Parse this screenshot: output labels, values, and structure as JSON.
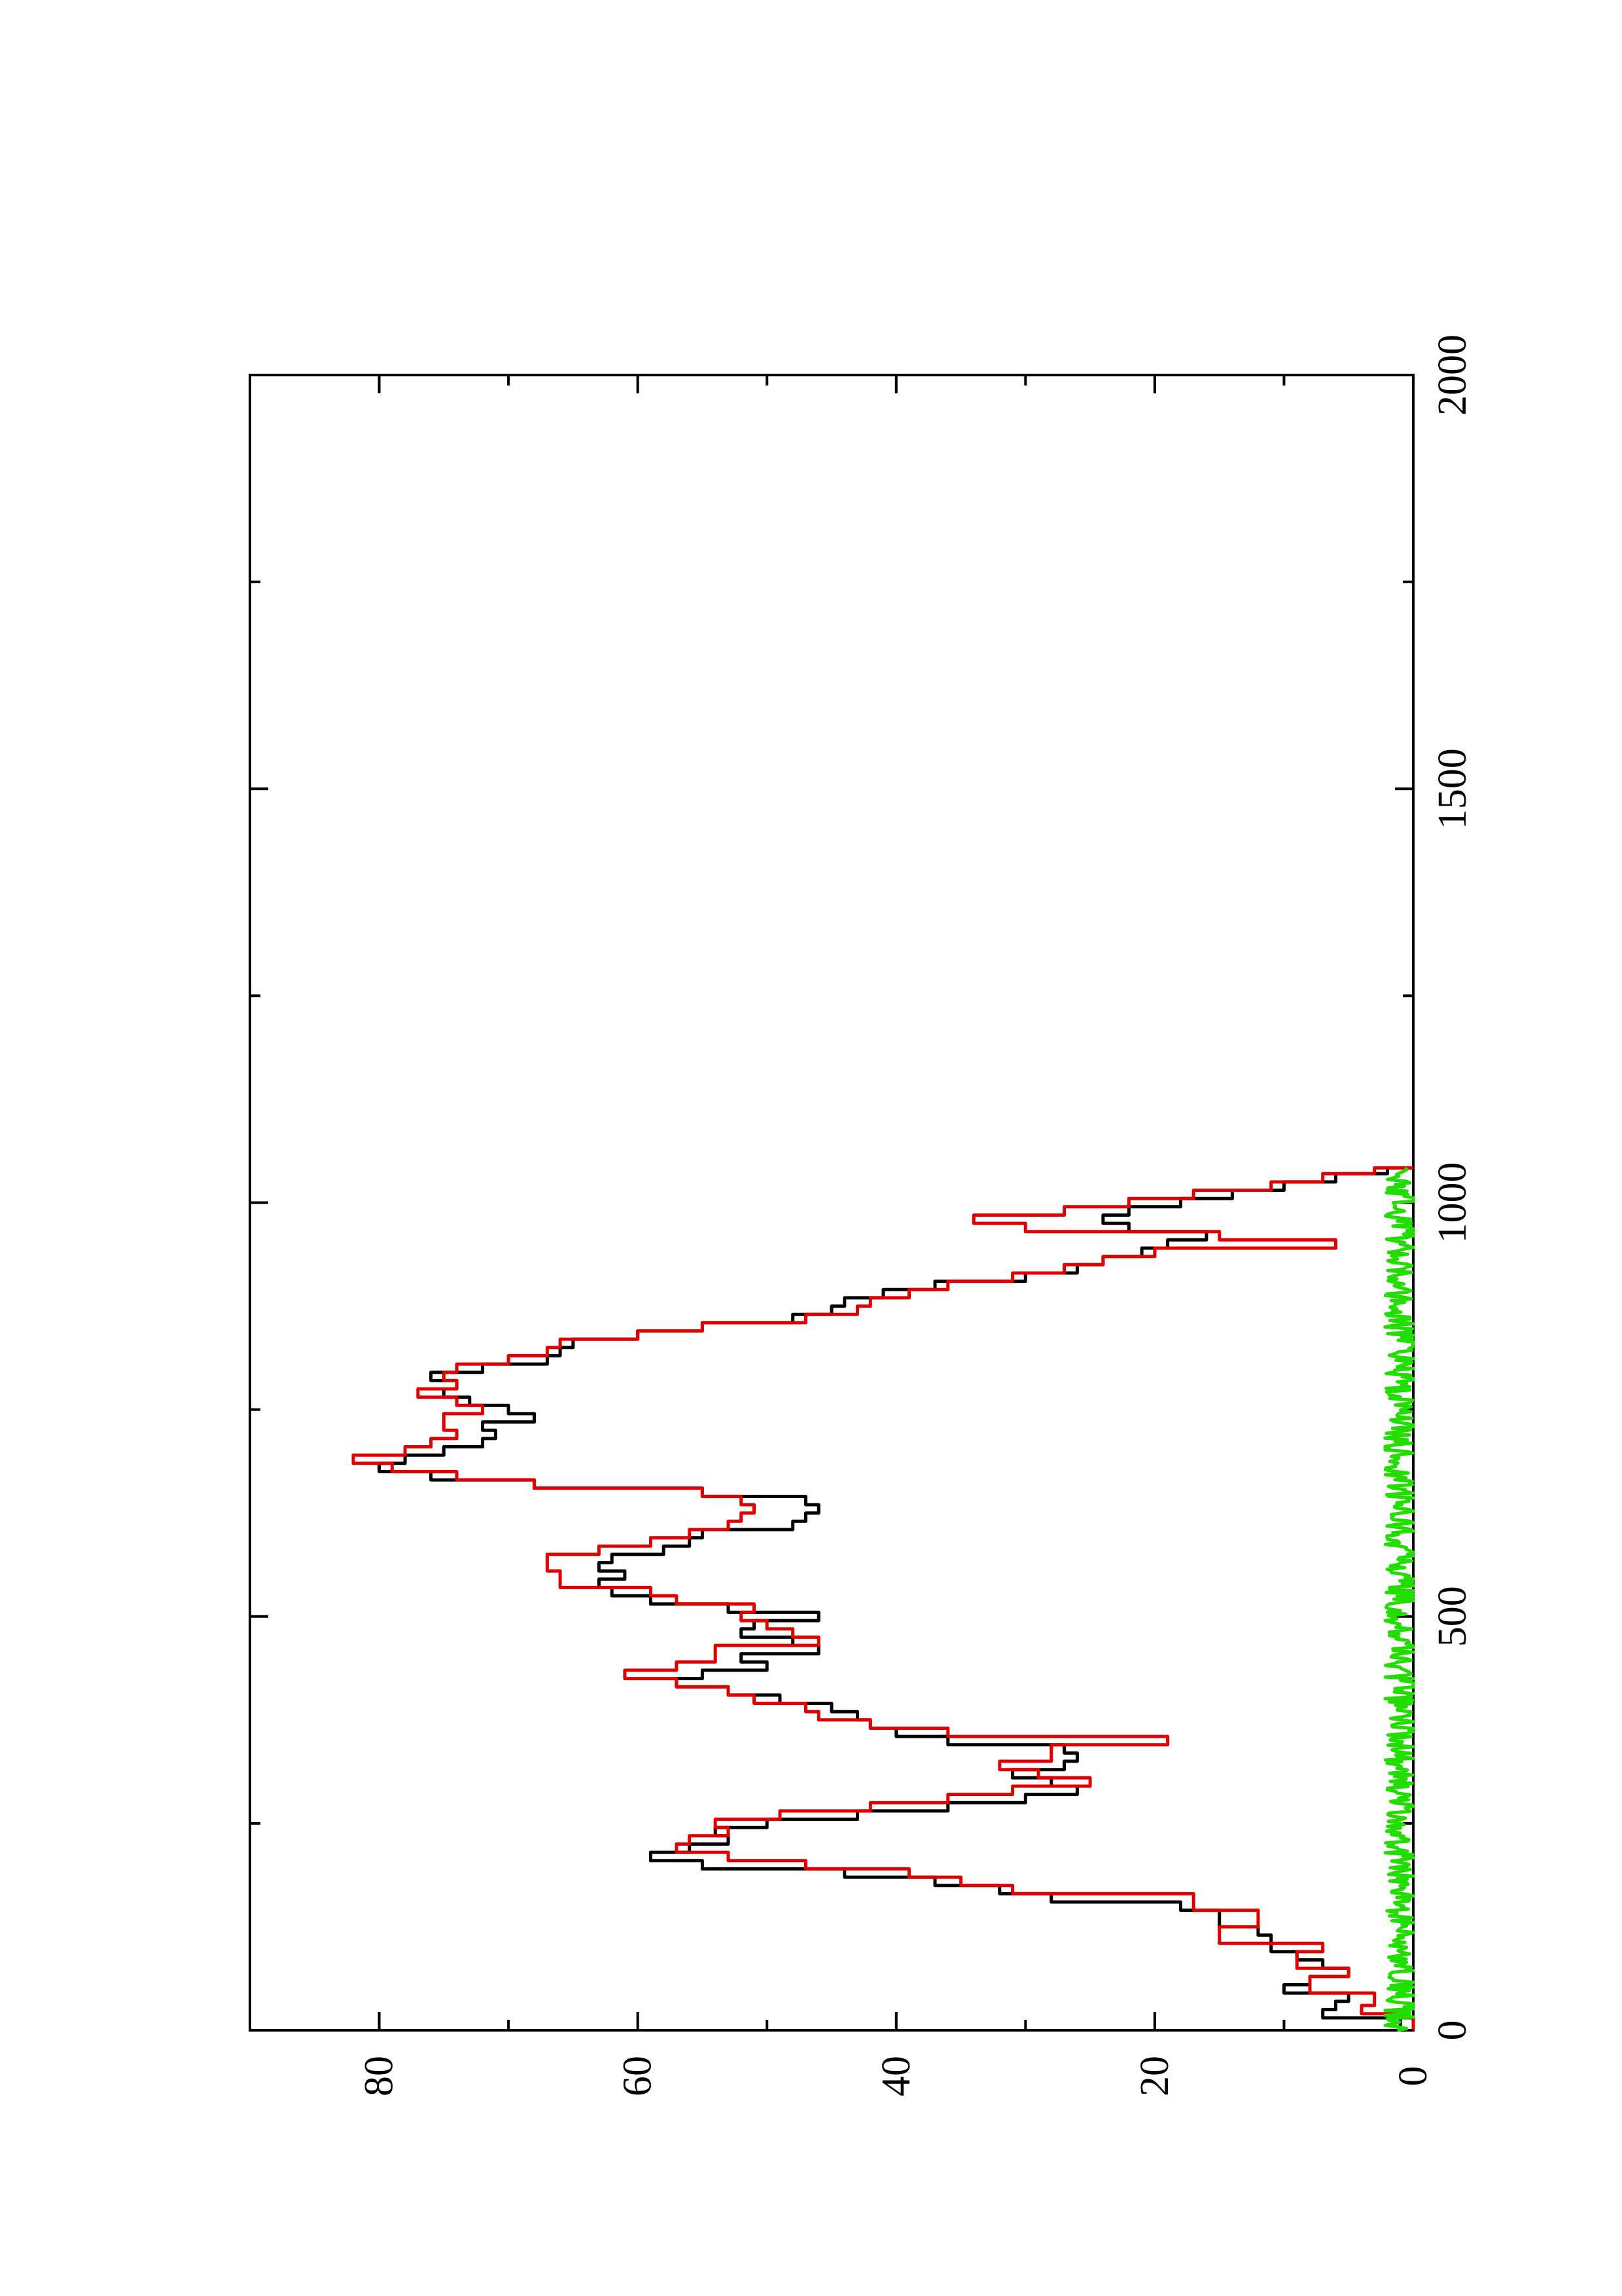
{
  "chart_data": {
    "type": "line",
    "orientation": "rotated-90-ccw",
    "title": "",
    "xlabel": "",
    "ylabel": "",
    "xlim": [
      0,
      2000
    ],
    "ylim": [
      0,
      90
    ],
    "x_ticks": [
      "0",
      "500",
      "1000",
      "1500",
      "2000"
    ],
    "y_ticks": [
      "0",
      "20",
      "40",
      "60",
      "80"
    ],
    "grid": false,
    "legend": "none",
    "series": [
      {
        "color": "#000000",
        "x": [
          0,
          10,
          15,
          25,
          35,
          45,
          55,
          65,
          75,
          85,
          95,
          105,
          115,
          125,
          135,
          145,
          155,
          165,
          175,
          185,
          195,
          205,
          215,
          225,
          235,
          245,
          255,
          265,
          275,
          285,
          295,
          305,
          315,
          325,
          335,
          345,
          355,
          365,
          375,
          385,
          395,
          405,
          415,
          425,
          435,
          445,
          455,
          465,
          475,
          485,
          495,
          505,
          515,
          525,
          535,
          545,
          555,
          565,
          575,
          585,
          595,
          605,
          615,
          625,
          635,
          645,
          655,
          665,
          675,
          685,
          695,
          705,
          715,
          725,
          735,
          745,
          755,
          765,
          775,
          785,
          795,
          805,
          815,
          825,
          835,
          845,
          855,
          865,
          875,
          885,
          895,
          905,
          915,
          925,
          935,
          945,
          955,
          965,
          975,
          985,
          995,
          1005,
          1015,
          1025,
          1035,
          1042
        ],
        "y": [
          1,
          1,
          7,
          6,
          5,
          10,
          8,
          5,
          7,
          9,
          11,
          11,
          12,
          15,
          15,
          18,
          28,
          32,
          37,
          44,
          55,
          59,
          56,
          53,
          54,
          50,
          43,
          36,
          30,
          26,
          28,
          31,
          27,
          26,
          27,
          36,
          40,
          42,
          43,
          45,
          49,
          53,
          57,
          55,
          50,
          52,
          46,
          48,
          52,
          51,
          46,
          53,
          59,
          62,
          63,
          61,
          63,
          62,
          58,
          56,
          55,
          48,
          47,
          46,
          47,
          55,
          68,
          76,
          80,
          78,
          75,
          72,
          71,
          72,
          68,
          70,
          73,
          75,
          74,
          76,
          72,
          67,
          66,
          65,
          60,
          55,
          48,
          45,
          44,
          41,
          37,
          30,
          26,
          24,
          21,
          19,
          16,
          22,
          24,
          22,
          18,
          14,
          10,
          6,
          2,
          0
        ]
      },
      {
        "color": "#e00000",
        "x": [
          0,
          15,
          20,
          30,
          45,
          55,
          65,
          75,
          85,
          95,
          105,
          115,
          125,
          135,
          145,
          155,
          165,
          175,
          185,
          195,
          205,
          215,
          225,
          235,
          245,
          255,
          265,
          275,
          285,
          295,
          305,
          315,
          325,
          335,
          345,
          355,
          365,
          375,
          385,
          395,
          405,
          415,
          425,
          435,
          445,
          455,
          465,
          475,
          485,
          495,
          505,
          515,
          525,
          535,
          545,
          555,
          565,
          575,
          585,
          595,
          605,
          615,
          625,
          635,
          645,
          655,
          665,
          675,
          685,
          695,
          705,
          715,
          725,
          735,
          745,
          755,
          765,
          775,
          785,
          795,
          805,
          815,
          825,
          835,
          845,
          855,
          865,
          875,
          885,
          895,
          905,
          915,
          925,
          935,
          945,
          955,
          965,
          975,
          985,
          995,
          1005,
          1015,
          1025,
          1035,
          1042
        ],
        "y": [
          0,
          1,
          4,
          3,
          8,
          8,
          5,
          9,
          9,
          7,
          15,
          15,
          12,
          12,
          17,
          17,
          31,
          35,
          39,
          47,
          53,
          57,
          56,
          53,
          54,
          49,
          42,
          36,
          31,
          25,
          29,
          32,
          28,
          28,
          19,
          36,
          42,
          46,
          47,
          51,
          53,
          57,
          61,
          57,
          54,
          54,
          46,
          48,
          50,
          52,
          51,
          57,
          59,
          66,
          66,
          67,
          67,
          63,
          59,
          56,
          53,
          52,
          51,
          52,
          55,
          68,
          74,
          79,
          82,
          78,
          76,
          74,
          75,
          75,
          72,
          74,
          77,
          74,
          75,
          74,
          70,
          67,
          66,
          60,
          55,
          47,
          43,
          42,
          39,
          36,
          31,
          27,
          24,
          20,
          6,
          15,
          30,
          34,
          27,
          22,
          17,
          11,
          7,
          3,
          0
        ]
      },
      {
        "color": "#22dd00",
        "x": [
          0,
          1042
        ],
        "y": [
          1,
          1
        ],
        "noise_amplitude": 1.2
      }
    ]
  }
}
